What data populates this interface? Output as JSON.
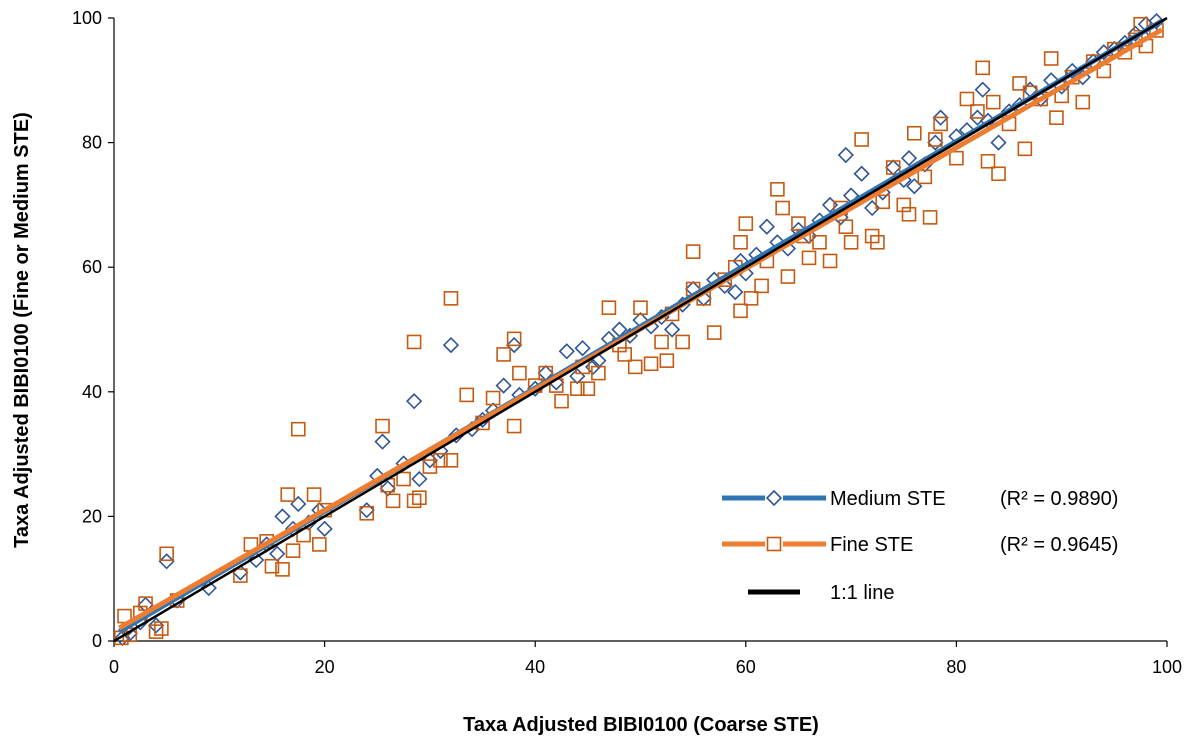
{
  "chart_data": {
    "type": "scatter",
    "xlabel": "Taxa Adjusted BIBI0100 (Coarse STE)",
    "ylabel": "Taxa Adjusted BIBI0100 (Fine or Medium STE)",
    "xlim": [
      0,
      100
    ],
    "ylim": [
      0,
      100
    ],
    "xticks": [
      0,
      20,
      40,
      60,
      80,
      100
    ],
    "yticks": [
      0,
      20,
      40,
      60,
      80,
      100
    ],
    "grid": false,
    "legend_position": "bottom-right",
    "series": [
      {
        "name": "Medium STE",
        "r2_label": "(R² = 0.9890)",
        "marker": "diamond",
        "marker_color": "#2F5597",
        "line_color": "#2E75B6",
        "trendline": {
          "slope": 0.99,
          "intercept": 1.0
        },
        "points": [
          [
            0.8,
            0.5
          ],
          [
            1.2,
            1.8
          ],
          [
            1.5,
            1.2
          ],
          [
            2.5,
            3.0
          ],
          [
            3.0,
            5.8
          ],
          [
            4.0,
            2.5
          ],
          [
            5.0,
            12.8
          ],
          [
            6.0,
            6.5
          ],
          [
            9.0,
            8.5
          ],
          [
            12.0,
            11.0
          ],
          [
            13.5,
            13.0
          ],
          [
            14.5,
            15.5
          ],
          [
            15.5,
            14.0
          ],
          [
            16.0,
            20.0
          ],
          [
            17.0,
            18.0
          ],
          [
            17.5,
            22.0
          ],
          [
            18.5,
            19.0
          ],
          [
            19.5,
            21.0
          ],
          [
            20.0,
            18.0
          ],
          [
            24.0,
            21.0
          ],
          [
            25.0,
            26.5
          ],
          [
            25.5,
            32.0
          ],
          [
            26.0,
            24.5
          ],
          [
            27.5,
            28.5
          ],
          [
            28.5,
            38.5
          ],
          [
            29.0,
            26.0
          ],
          [
            30.0,
            29.0
          ],
          [
            31.0,
            30.5
          ],
          [
            32.0,
            47.5
          ],
          [
            32.5,
            33.0
          ],
          [
            34.0,
            34.0
          ],
          [
            35.0,
            35.5
          ],
          [
            36.0,
            37.0
          ],
          [
            37.0,
            41.0
          ],
          [
            38.0,
            47.5
          ],
          [
            38.5,
            39.5
          ],
          [
            40.0,
            40.5
          ],
          [
            41.0,
            43.0
          ],
          [
            42.0,
            41.5
          ],
          [
            43.0,
            46.5
          ],
          [
            44.0,
            42.5
          ],
          [
            44.5,
            47.0
          ],
          [
            45.5,
            44.0
          ],
          [
            46.0,
            45.0
          ],
          [
            47.0,
            48.5
          ],
          [
            48.0,
            50.0
          ],
          [
            49.0,
            49.0
          ],
          [
            50.0,
            51.5
          ],
          [
            51.0,
            50.5
          ],
          [
            52.0,
            52.0
          ],
          [
            53.0,
            50.0
          ],
          [
            54.0,
            54.0
          ],
          [
            55.0,
            56.5
          ],
          [
            56.0,
            55.0
          ],
          [
            57.0,
            58.0
          ],
          [
            58.0,
            57.0
          ],
          [
            59.0,
            56.0
          ],
          [
            59.5,
            61.0
          ],
          [
            60.0,
            59.0
          ],
          [
            61.0,
            62.0
          ],
          [
            62.0,
            66.5
          ],
          [
            63.0,
            64.0
          ],
          [
            64.0,
            63.0
          ],
          [
            65.0,
            66.0
          ],
          [
            66.0,
            65.0
          ],
          [
            67.0,
            67.5
          ],
          [
            68.0,
            70.0
          ],
          [
            69.0,
            68.0
          ],
          [
            69.5,
            78.0
          ],
          [
            70.0,
            71.5
          ],
          [
            71.0,
            75.0
          ],
          [
            72.0,
            69.5
          ],
          [
            73.0,
            72.0
          ],
          [
            74.0,
            76.0
          ],
          [
            75.0,
            74.0
          ],
          [
            75.5,
            77.5
          ],
          [
            76.0,
            73.0
          ],
          [
            77.0,
            76.5
          ],
          [
            78.0,
            80.0
          ],
          [
            78.5,
            84.0
          ],
          [
            80.0,
            81.0
          ],
          [
            81.0,
            82.0
          ],
          [
            82.0,
            84.0
          ],
          [
            82.5,
            88.5
          ],
          [
            83.0,
            83.5
          ],
          [
            84.0,
            80.0
          ],
          [
            85.0,
            85.0
          ],
          [
            86.0,
            86.0
          ],
          [
            87.0,
            88.5
          ],
          [
            88.0,
            87.0
          ],
          [
            89.0,
            90.0
          ],
          [
            90.0,
            89.0
          ],
          [
            91.0,
            91.5
          ],
          [
            92.0,
            90.5
          ],
          [
            93.0,
            93.0
          ],
          [
            94.0,
            94.5
          ],
          [
            95.0,
            95.0
          ],
          [
            96.0,
            96.0
          ],
          [
            97.0,
            97.5
          ],
          [
            98.0,
            99.0
          ],
          [
            98.5,
            98.0
          ],
          [
            99.0,
            99.5
          ]
        ]
      },
      {
        "name": "Fine STE",
        "r2_label": "(R² = 0.9645)",
        "marker": "square",
        "marker_color": "#C55A11",
        "line_color": "#ED7D31",
        "trendline": {
          "slope": 0.97,
          "intercept": 1.6
        },
        "points": [
          [
            0.7,
            0.5
          ],
          [
            1.0,
            4.0
          ],
          [
            1.5,
            1.0
          ],
          [
            2.5,
            4.5
          ],
          [
            3.0,
            6.0
          ],
          [
            4.0,
            1.5
          ],
          [
            4.5,
            2.0
          ],
          [
            5.0,
            14.0
          ],
          [
            6.0,
            6.5
          ],
          [
            12.0,
            10.5
          ],
          [
            13.0,
            15.5
          ],
          [
            14.5,
            16.0
          ],
          [
            15.0,
            12.0
          ],
          [
            16.0,
            11.5
          ],
          [
            16.5,
            23.5
          ],
          [
            17.0,
            14.5
          ],
          [
            17.5,
            34.0
          ],
          [
            18.0,
            17.0
          ],
          [
            19.0,
            23.5
          ],
          [
            19.5,
            15.5
          ],
          [
            20.0,
            21.0
          ],
          [
            24.0,
            20.5
          ],
          [
            25.5,
            34.5
          ],
          [
            26.0,
            25.0
          ],
          [
            26.5,
            22.5
          ],
          [
            27.5,
            26.0
          ],
          [
            28.5,
            48.0
          ],
          [
            28.5,
            22.5
          ],
          [
            29.0,
            23.0
          ],
          [
            30.0,
            28.0
          ],
          [
            31.0,
            29.0
          ],
          [
            32.0,
            55.0
          ],
          [
            32.0,
            29.0
          ],
          [
            33.5,
            39.5
          ],
          [
            35.0,
            35.0
          ],
          [
            36.0,
            39.0
          ],
          [
            37.0,
            46.0
          ],
          [
            38.0,
            48.5
          ],
          [
            38.0,
            34.5
          ],
          [
            38.5,
            43.0
          ],
          [
            40.0,
            41.0
          ],
          [
            41.0,
            43.0
          ],
          [
            42.0,
            41.0
          ],
          [
            42.5,
            38.5
          ],
          [
            44.0,
            40.5
          ],
          [
            44.5,
            44.0
          ],
          [
            45.0,
            40.5
          ],
          [
            46.0,
            43.0
          ],
          [
            47.0,
            53.5
          ],
          [
            48.0,
            47.5
          ],
          [
            48.5,
            46.0
          ],
          [
            49.5,
            44.0
          ],
          [
            50.0,
            53.5
          ],
          [
            51.0,
            44.5
          ],
          [
            52.0,
            48.0
          ],
          [
            52.5,
            45.0
          ],
          [
            53.0,
            52.5
          ],
          [
            54.0,
            48.0
          ],
          [
            55.0,
            56.5
          ],
          [
            55.0,
            62.5
          ],
          [
            56.0,
            55.0
          ],
          [
            57.0,
            49.5
          ],
          [
            58.0,
            58.0
          ],
          [
            59.0,
            60.0
          ],
          [
            59.5,
            64.0
          ],
          [
            59.5,
            53.0
          ],
          [
            60.0,
            67.0
          ],
          [
            60.5,
            55.0
          ],
          [
            61.5,
            57.0
          ],
          [
            62.0,
            61.0
          ],
          [
            63.0,
            72.5
          ],
          [
            63.5,
            69.5
          ],
          [
            64.0,
            58.5
          ],
          [
            65.0,
            67.0
          ],
          [
            65.5,
            65.0
          ],
          [
            66.0,
            61.5
          ],
          [
            67.0,
            64.0
          ],
          [
            68.0,
            61.0
          ],
          [
            69.0,
            69.5
          ],
          [
            69.5,
            66.5
          ],
          [
            70.0,
            64.0
          ],
          [
            71.0,
            80.5
          ],
          [
            72.0,
            65.0
          ],
          [
            72.5,
            64.0
          ],
          [
            73.0,
            70.5
          ],
          [
            74.0,
            76.0
          ],
          [
            75.0,
            70.0
          ],
          [
            75.5,
            68.5
          ],
          [
            76.0,
            81.5
          ],
          [
            77.0,
            74.5
          ],
          [
            77.5,
            68.0
          ],
          [
            78.0,
            80.5
          ],
          [
            78.5,
            83.0
          ],
          [
            80.0,
            77.5
          ],
          [
            81.0,
            87.0
          ],
          [
            82.0,
            85.0
          ],
          [
            82.5,
            92.0
          ],
          [
            83.0,
            77.0
          ],
          [
            83.5,
            86.5
          ],
          [
            84.0,
            75.0
          ],
          [
            85.0,
            83.0
          ],
          [
            86.0,
            89.5
          ],
          [
            86.5,
            79.0
          ],
          [
            87.0,
            88.0
          ],
          [
            88.0,
            87.0
          ],
          [
            89.0,
            93.5
          ],
          [
            89.5,
            84.0
          ],
          [
            90.0,
            87.5
          ],
          [
            91.0,
            90.5
          ],
          [
            92.0,
            86.5
          ],
          [
            93.0,
            93.0
          ],
          [
            94.0,
            91.5
          ],
          [
            95.0,
            95.0
          ],
          [
            96.0,
            94.5
          ],
          [
            97.0,
            96.5
          ],
          [
            97.5,
            99.0
          ],
          [
            98.0,
            95.5
          ],
          [
            99.0,
            98.0
          ]
        ]
      },
      {
        "name": "1:1 line",
        "marker": "none",
        "line_color": "#000000",
        "line": [
          [
            0,
            0
          ],
          [
            100,
            100
          ]
        ]
      }
    ]
  }
}
